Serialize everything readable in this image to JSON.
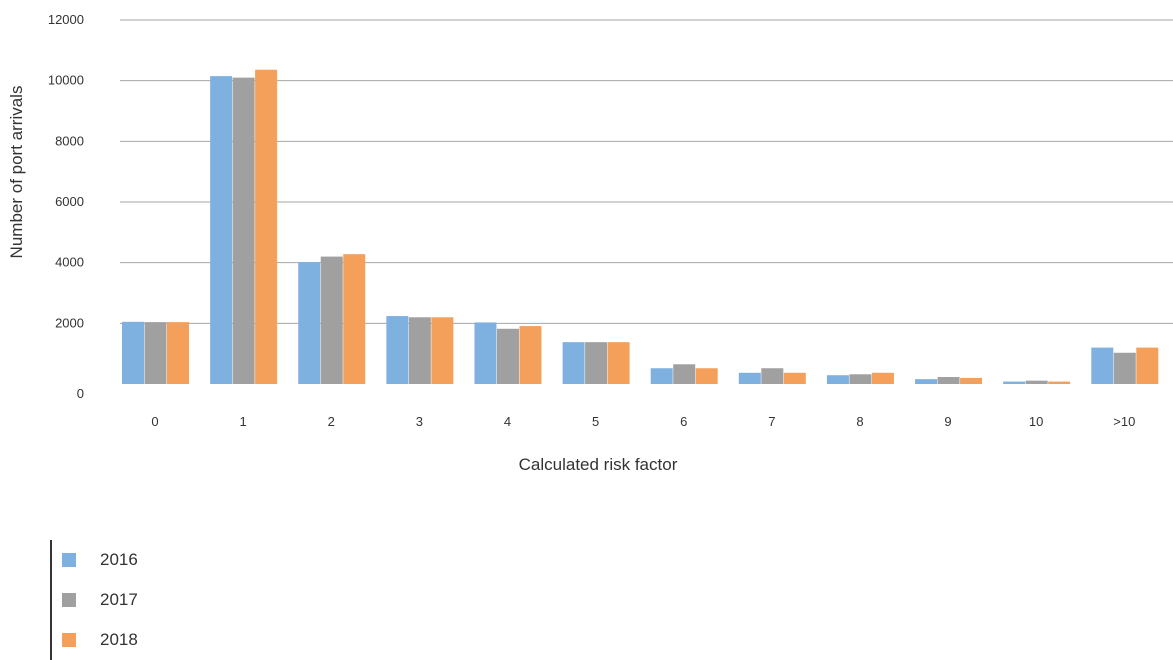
{
  "chart_data": {
    "type": "bar",
    "xlabel": "Calculated risk factor",
    "ylabel": "Number of port arrivals",
    "ylim": [
      0,
      12000
    ],
    "yticks": [
      0,
      2000,
      4000,
      6000,
      8000,
      10000,
      12000
    ],
    "categories": [
      "0",
      "1",
      "2",
      "3",
      "4",
      "5",
      "6",
      "7",
      "8",
      "9",
      "10",
      ">10"
    ],
    "series": [
      {
        "name": "2016",
        "color": "#7FB1E0",
        "values": [
          2050,
          10150,
          4020,
          2240,
          2030,
          1380,
          520,
          370,
          290,
          160,
          80,
          1200
        ]
      },
      {
        "name": "2017",
        "color": "#A0A0A0",
        "values": [
          2040,
          10100,
          4200,
          2200,
          1820,
          1380,
          650,
          520,
          320,
          230,
          110,
          1030
        ]
      },
      {
        "name": "2018",
        "color": "#F5A05A",
        "values": [
          2040,
          10360,
          4280,
          2200,
          1910,
          1380,
          520,
          370,
          370,
          200,
          80,
          1200
        ]
      }
    ],
    "grid": true,
    "legend": "bottom-left"
  }
}
